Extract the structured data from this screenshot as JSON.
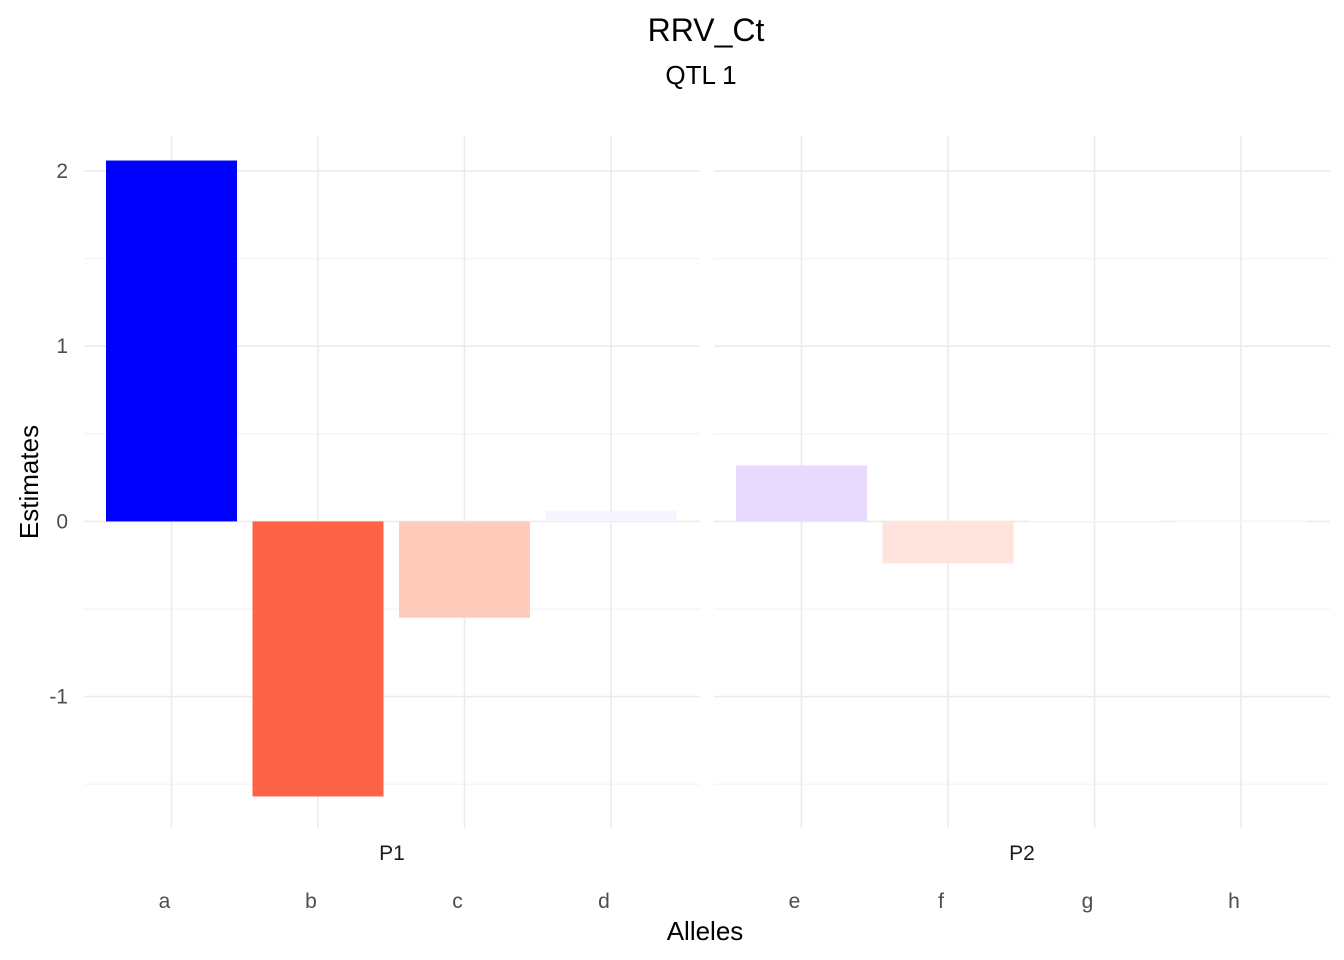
{
  "chart_data": {
    "type": "bar",
    "title": "RRV_Ct",
    "subtitle": "QTL 1",
    "xlabel": "Alleles",
    "ylabel": "Estimates",
    "ylim": [
      -1.75,
      2.2
    ],
    "yticks": [
      -1,
      0,
      1,
      2
    ],
    "grid": true,
    "legend": "none",
    "facets": [
      {
        "name": "P1",
        "categories": [
          "a",
          "b",
          "c",
          "d"
        ],
        "values": [
          2.06,
          -1.57,
          -0.55,
          0.06
        ],
        "colors": [
          "#0000FF",
          "#FF6347",
          "#FFCCBB",
          "#F7F4FF"
        ]
      },
      {
        "name": "P2",
        "categories": [
          "e",
          "f",
          "g",
          "h"
        ],
        "values": [
          0.32,
          -0.24,
          0.005,
          -0.003
        ],
        "colors": [
          "#E8DAFF",
          "#FFE4DD",
          "#FEFEFF",
          "#FFFEFE"
        ]
      }
    ]
  }
}
